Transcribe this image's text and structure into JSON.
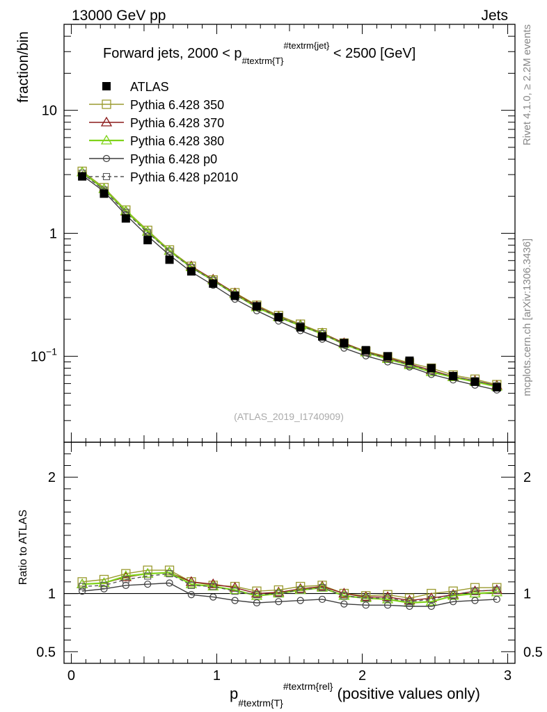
{
  "header": {
    "left": "13000 GeV pp",
    "right": "Jets"
  },
  "side_labels": {
    "rivet": "Rivet 4.1.0, ≥ 2.2M events",
    "site": "mcplots.cern.ch [arXiv:1306.3436]"
  },
  "watermark": "(ATLAS_2019_I1740909)",
  "chart_data": {
    "type": "line",
    "title": {
      "prefix": "Forward jets, 2000 < p",
      "sub": "#textrm{T}",
      "sup": "#textrm{jet}",
      "suffix": " < 2500 [GeV]"
    },
    "xlabel": {
      "base": "p",
      "sub": "#textrm{T}",
      "sup": "#textrm{rel}",
      "suffix": " (positive values only)"
    },
    "ylabel_main": "fraction/bin",
    "ylabel_ratio": "Ratio to ATLAS",
    "xlim": [
      -0.05,
      3.05
    ],
    "ylim_main": [
      0.02,
      50
    ],
    "ylim_ratio": [
      0.4,
      2.3
    ],
    "main_yticks": [
      {
        "value": 0.1,
        "base": "10",
        "exp": "−1"
      },
      {
        "value": 1,
        "base": "1",
        "exp": ""
      },
      {
        "value": 10,
        "base": "10",
        "exp": ""
      }
    ],
    "ratio_yticks": [
      {
        "value": 0.5,
        "label": "0.5"
      },
      {
        "value": 1,
        "label": "1"
      },
      {
        "value": 2,
        "label": "2"
      }
    ],
    "xticks": [
      {
        "value": 0,
        "label": "0"
      },
      {
        "value": 1,
        "label": "1"
      },
      {
        "value": 2,
        "label": "2"
      },
      {
        "value": 3,
        "label": "3"
      }
    ],
    "x": [
      0.075,
      0.225,
      0.375,
      0.525,
      0.675,
      0.825,
      0.975,
      1.125,
      1.275,
      1.425,
      1.575,
      1.725,
      1.875,
      2.025,
      2.175,
      2.325,
      2.475,
      2.625,
      2.775,
      2.925
    ],
    "data": {
      "name": "ATLAS",
      "values": [
        2.9,
        2.1,
        1.32,
        0.88,
        0.61,
        0.49,
        0.39,
        0.31,
        0.255,
        0.208,
        0.172,
        0.145,
        0.128,
        0.112,
        0.1,
        0.092,
        0.08,
        0.069,
        0.062,
        0.056
      ]
    },
    "series": [
      {
        "name": "Pythia 6.428 350",
        "color": "#9a9a2e",
        "marker": "square-open",
        "dash": "solid",
        "ratio": [
          1.1,
          1.12,
          1.17,
          1.2,
          1.2,
          1.1,
          1.07,
          1.06,
          1.02,
          1.03,
          1.06,
          1.07,
          1.0,
          0.98,
          0.99,
          0.96,
          1.0,
          1.02,
          1.05,
          1.05
        ]
      },
      {
        "name": "Pythia 6.428 370",
        "color": "#8b1a1a",
        "marker": "triangle-open",
        "dash": "solid",
        "ratio": [
          1.08,
          1.09,
          1.14,
          1.17,
          1.18,
          1.1,
          1.08,
          1.05,
          1.0,
          1.01,
          1.04,
          1.06,
          1.0,
          0.97,
          0.97,
          0.94,
          0.96,
          0.99,
          1.02,
          1.03
        ]
      },
      {
        "name": "Pythia 6.428 380",
        "color": "#7fd31a",
        "marker": "triangle-open",
        "dash": "solid",
        "ratio": [
          1.08,
          1.09,
          1.15,
          1.17,
          1.18,
          1.08,
          1.06,
          1.03,
          0.98,
          1.0,
          1.03,
          1.05,
          0.98,
          0.96,
          0.95,
          0.92,
          0.93,
          0.98,
          1.0,
          1.01
        ]
      },
      {
        "name": "Pythia 6.428 p0",
        "color": "#3d3d3d",
        "marker": "circle-open",
        "dash": "solid",
        "ratio": [
          1.02,
          1.04,
          1.07,
          1.08,
          1.09,
          0.99,
          0.97,
          0.94,
          0.92,
          0.93,
          0.94,
          0.95,
          0.91,
          0.9,
          0.9,
          0.89,
          0.89,
          0.93,
          0.94,
          0.95
        ]
      },
      {
        "name": "Pythia 6.428 p2010",
        "color": "#555555",
        "marker": "square-open-small",
        "dash": "dashed",
        "ratio": [
          1.06,
          1.07,
          1.12,
          1.15,
          1.17,
          1.07,
          1.06,
          1.02,
          0.99,
          1.0,
          1.03,
          1.05,
          0.98,
          0.96,
          0.96,
          0.93,
          0.95,
          0.99,
          1.02,
          1.03
        ]
      }
    ]
  }
}
